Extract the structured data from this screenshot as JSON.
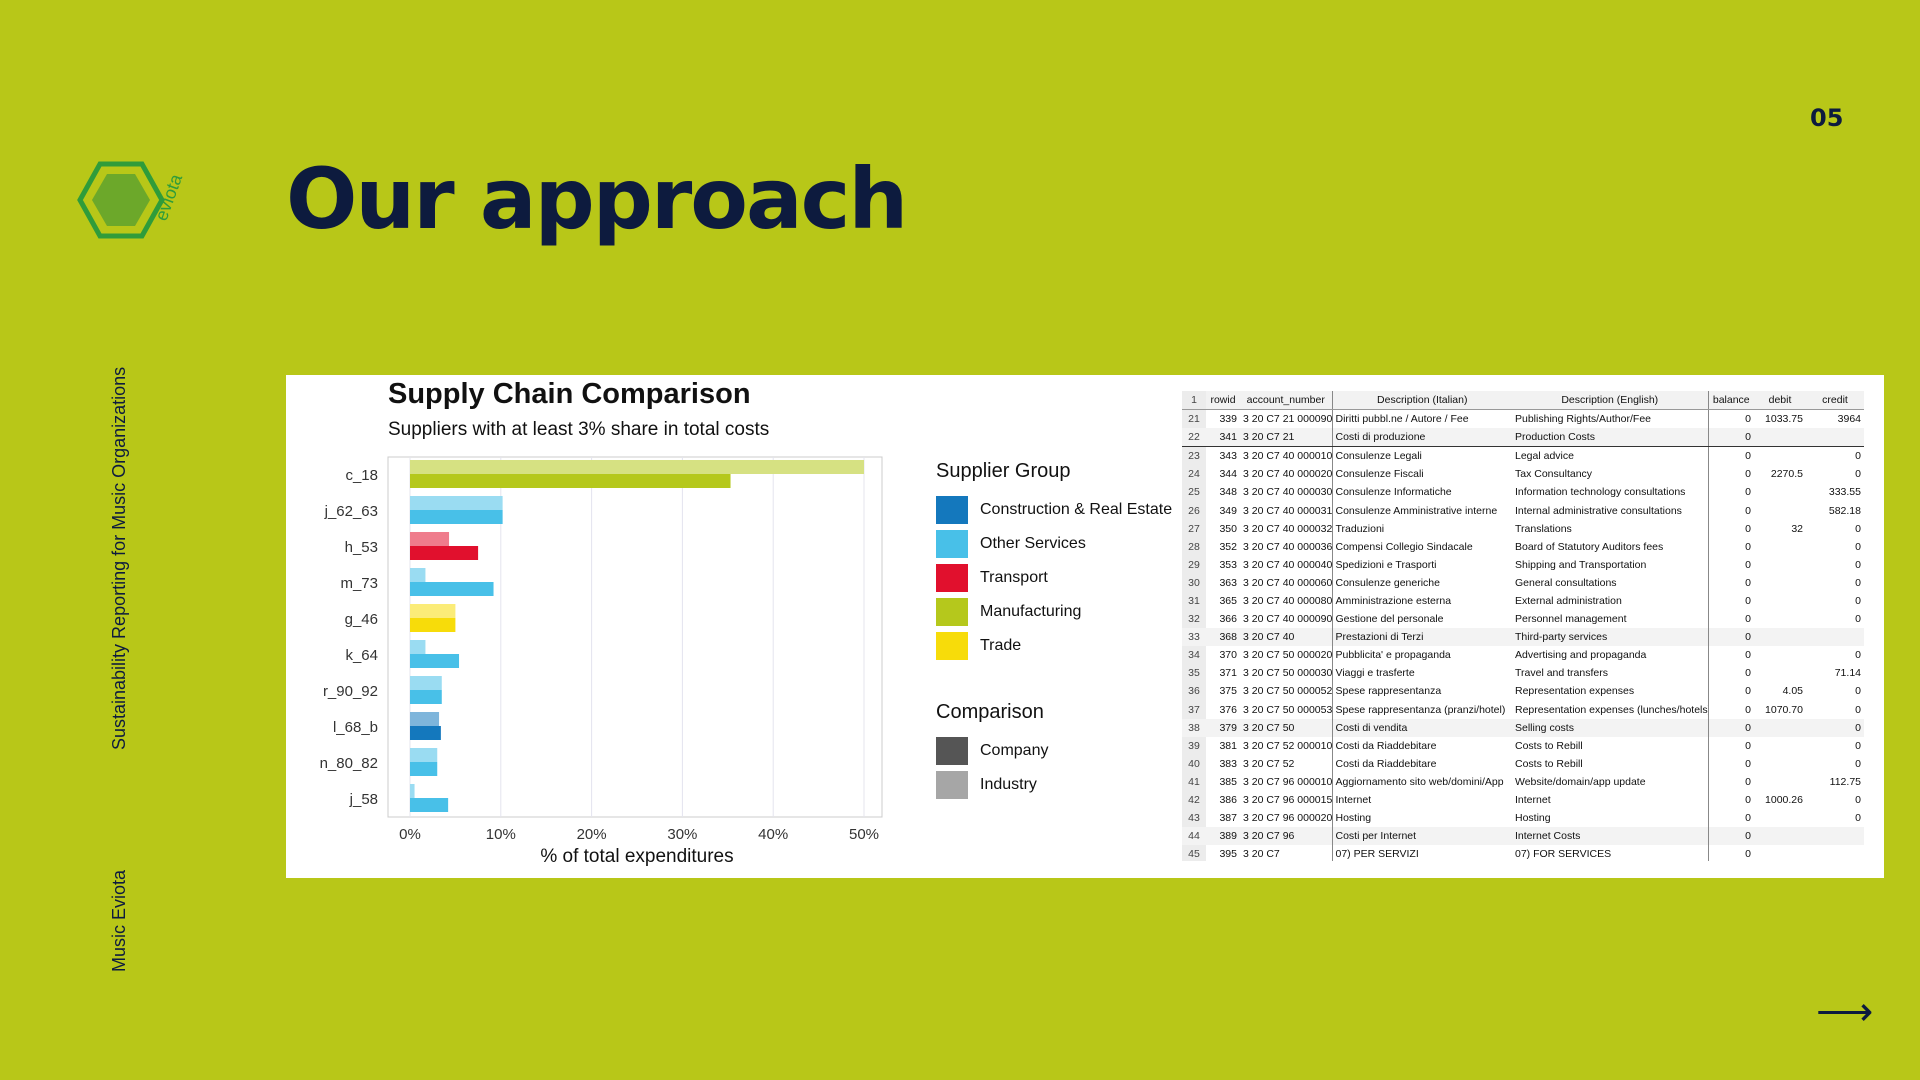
{
  "page_number": "05",
  "title": "Our approach",
  "logo_text": "eviota",
  "side_label_1": "Sustainability Reporting for Music Organizations",
  "side_label_2": "Music Eviota",
  "next_arrow": "⟶",
  "chart_data": {
    "type": "bar",
    "orientation": "horizontal",
    "title": "Supply Chain Comparison",
    "subtitle": "Suppliers with at least 3% share in total costs",
    "xlabel": "% of total expenditures",
    "xlim": [
      0,
      52
    ],
    "xticks": [
      "0%",
      "10%",
      "20%",
      "30%",
      "40%",
      "50%"
    ],
    "categories": [
      "c_18",
      "j_62_63",
      "h_53",
      "m_73",
      "g_46",
      "k_64",
      "r_90_92",
      "l_68_b",
      "n_80_82",
      "j_58"
    ],
    "supplier_group": [
      "Manufacturing",
      "Other Services",
      "Transport",
      "Other Services",
      "Trade",
      "Other Services",
      "Other Services",
      "Construction & Real Estate",
      "Other Services",
      "Other Services"
    ],
    "series": [
      {
        "name": "Industry",
        "values": [
          50,
          10.2,
          4.3,
          1.7,
          5.0,
          1.7,
          3.5,
          3.2,
          3.0,
          0.5
        ]
      },
      {
        "name": "Company",
        "values": [
          35.3,
          10.2,
          7.5,
          9.2,
          5.0,
          5.4,
          3.5,
          3.4,
          3.0,
          4.2
        ]
      }
    ],
    "legend_groups": {
      "supplier_group_title": "Supplier Group",
      "supplier_groups": [
        {
          "name": "Construction & Real Estate",
          "color": "#1478bd"
        },
        {
          "name": "Other Services",
          "color": "#48c0e8"
        },
        {
          "name": "Transport",
          "color": "#e1102d"
        },
        {
          "name": "Manufacturing",
          "color": "#b5c81c"
        },
        {
          "name": "Trade",
          "color": "#f7dc0a"
        }
      ],
      "comparison_title": "Comparison",
      "comparison": [
        {
          "name": "Company",
          "color": "#555555"
        },
        {
          "name": "Industry",
          "color": "#a6a6a6"
        }
      ]
    },
    "grid": true
  },
  "table": {
    "headers": [
      "1",
      "rowid",
      "account_number",
      "Description (Italian)",
      "Description (English)",
      "balance",
      "debit",
      "credit"
    ],
    "rows": [
      [
        "21",
        "339",
        "3 20 C7 21 000090",
        "Diritti pubbl.ne / Autore / Fee",
        "Publishing Rights/Author/Fee",
        "0",
        "1033.75",
        "3964"
      ],
      [
        "22",
        "341",
        "3 20 C7 21",
        "Costi di produzione",
        "Production Costs",
        "0",
        "",
        ""
      ],
      [
        "23",
        "343",
        "3 20 C7 40 000010",
        "Consulenze Legali",
        "Legal advice",
        "0",
        "",
        "0"
      ],
      [
        "24",
        "344",
        "3 20 C7 40 000020",
        "Consulenze Fiscali",
        "Tax Consultancy",
        "0",
        "2270.5",
        "0"
      ],
      [
        "25",
        "348",
        "3 20 C7 40 000030",
        "Consulenze Informatiche",
        "Information technology consultations",
        "0",
        "",
        "333.55"
      ],
      [
        "26",
        "349",
        "3 20 C7 40 000031",
        "Consulenze Amministrative interne",
        "Internal administrative consultations",
        "0",
        "",
        "582.18"
      ],
      [
        "27",
        "350",
        "3 20 C7 40 000032",
        "Traduzioni",
        "Translations",
        "0",
        "32",
        "0"
      ],
      [
        "28",
        "352",
        "3 20 C7 40 000036",
        "Compensi Collegio Sindacale",
        "Board of Statutory Auditors fees",
        "0",
        "",
        "0"
      ],
      [
        "29",
        "353",
        "3 20 C7 40 000040",
        "Spedizioni e Trasporti",
        "Shipping and Transportation",
        "0",
        "",
        "0"
      ],
      [
        "30",
        "363",
        "3 20 C7 40 000060",
        "Consulenze generiche",
        "General consultations",
        "0",
        "",
        "0"
      ],
      [
        "31",
        "365",
        "3 20 C7 40 000080",
        "Amministrazione esterna",
        "External administration",
        "0",
        "",
        "0"
      ],
      [
        "32",
        "366",
        "3 20 C7 40 000090",
        "Gestione del personale",
        "Personnel management",
        "0",
        "",
        "0"
      ],
      [
        "33",
        "368",
        "3 20 C7 40",
        "Prestazioni di Terzi",
        "Third-party services",
        "0",
        "",
        ""
      ],
      [
        "34",
        "370",
        "3 20 C7 50 000020",
        "Pubblicita' e propaganda",
        "Advertising and propaganda",
        "0",
        "",
        "0"
      ],
      [
        "35",
        "371",
        "3 20 C7 50 000030",
        "Viaggi e trasferte",
        "Travel and transfers",
        "0",
        "",
        "71.14"
      ],
      [
        "36",
        "375",
        "3 20 C7 50 000052",
        "Spese rappresentanza",
        "Representation expenses",
        "0",
        "4.05",
        "0"
      ],
      [
        "37",
        "376",
        "3 20 C7 50 000053",
        "Spese rappresentanza (pranzi/hotel)",
        "Representation expenses (lunches/hotels)",
        "0",
        "1070.70",
        "0"
      ],
      [
        "38",
        "379",
        "3 20 C7 50",
        "Costi di vendita",
        "Selling costs",
        "0",
        "",
        "0"
      ],
      [
        "39",
        "381",
        "3 20 C7 52 000010",
        "Costi da Riaddebitare",
        "Costs to Rebill",
        "0",
        "",
        "0"
      ],
      [
        "40",
        "383",
        "3 20 C7 52",
        "Costi da Riaddebitare",
        "Costs to Rebill",
        "0",
        "",
        "0"
      ],
      [
        "41",
        "385",
        "3 20 C7 96 000010",
        "Aggiornamento sito web/domini/App",
        "Website/domain/app update",
        "0",
        "",
        "112.75"
      ],
      [
        "42",
        "386",
        "3 20 C7 96 000015",
        "Internet",
        "Internet",
        "0",
        "1000.26",
        "0"
      ],
      [
        "43",
        "387",
        "3 20 C7 96 000020",
        "Hosting",
        "Hosting",
        "0",
        "",
        "0"
      ],
      [
        "44",
        "389",
        "3 20 C7 96",
        "Costi per Internet",
        "Internet Costs",
        "0",
        "",
        ""
      ],
      [
        "45",
        "395",
        "3 20 C7",
        "07) PER SERVIZI",
        "07) FOR SERVICES",
        "0",
        "",
        ""
      ]
    ]
  }
}
